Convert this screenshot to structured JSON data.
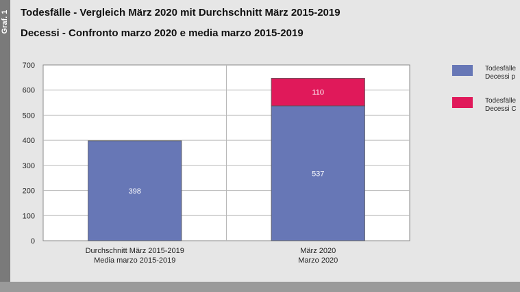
{
  "side_label": "Graf. 1",
  "titles": {
    "de": "Todesfälle - Vergleich März 2020 mit Durchschnitt März 2015-2019",
    "it": "Decessi - Confronto marzo 2020 e media marzo 2015-2019"
  },
  "chart_data": {
    "type": "bar",
    "stacked": true,
    "categories": [
      [
        "Durchschnitt März 2015-2019",
        "Media marzo 2015-2019"
      ],
      [
        "März 2020",
        "Marzo 2020"
      ]
    ],
    "series": [
      {
        "name": "Todesfälle ... / Decessi p...",
        "color": "#6777b6",
        "values": [
          398,
          537
        ]
      },
      {
        "name": "Todesfälle ... / Decessi C...",
        "color": "#e0195a",
        "values": [
          0,
          110
        ]
      }
    ],
    "ylim": [
      0,
      700
    ],
    "yticks": [
      0,
      100,
      200,
      300,
      400,
      500,
      600,
      700
    ],
    "grid": true,
    "legend_position": "right"
  },
  "legend": [
    {
      "line1": "Todesfälle",
      "line2": "Decessi p",
      "color": "#6777b6"
    },
    {
      "line1": "Todesfälle",
      "line2": "Decessi C",
      "color": "#e0195a"
    }
  ]
}
